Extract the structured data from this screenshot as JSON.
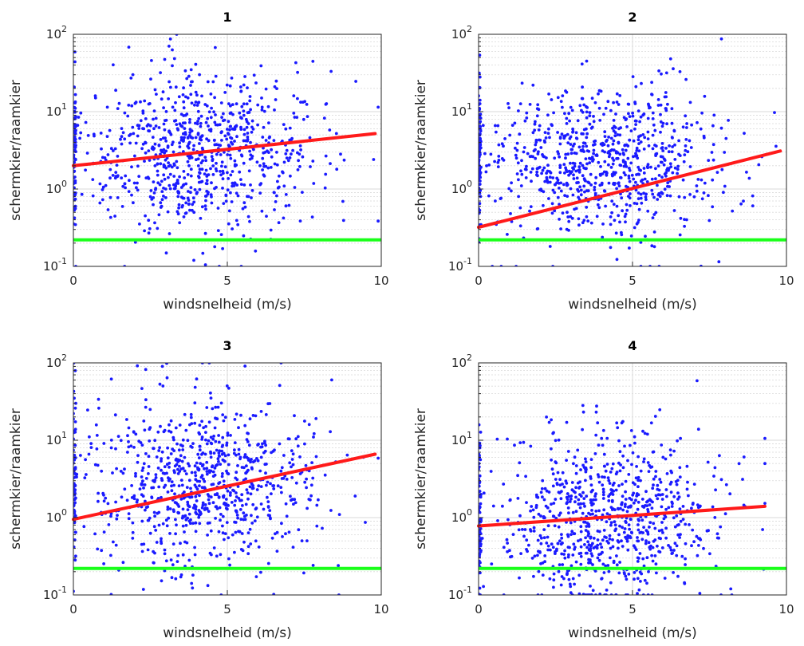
{
  "colors": {
    "points": "#1a1aff",
    "fit_line": "#ff1a1a",
    "threshold_line": "#1aff1a",
    "grid": "#d9d9d9",
    "axes": "#262626"
  },
  "chart_data": [
    {
      "type": "scatter",
      "title": "1",
      "xlabel": "windsnelheid (m/s)",
      "ylabel": "schermkier/raamkier",
      "xlim": [
        0,
        10
      ],
      "ylim": [
        0.1,
        100
      ],
      "yscale": "log",
      "xticks": [
        "0",
        "5",
        "10"
      ],
      "yticks": [
        {
          "base": "10",
          "exp": "-1"
        },
        {
          "base": "10",
          "exp": "0"
        },
        {
          "base": "10",
          "exp": "1"
        },
        {
          "base": "10",
          "exp": "2"
        }
      ],
      "grid": true,
      "fit_line": {
        "x": [
          0,
          9.8
        ],
        "y": [
          2.0,
          5.2
        ]
      },
      "threshold": 0.22,
      "point_spread": {
        "x_max": 9.9,
        "center_log10": 0.45,
        "sigma_log10": 0.5
      }
    },
    {
      "type": "scatter",
      "title": "2",
      "xlabel": "windsnelheid (m/s)",
      "ylabel": "schermkier/raamkier",
      "xlim": [
        0,
        10
      ],
      "ylim": [
        0.1,
        100
      ],
      "yscale": "log",
      "xticks": [
        "0",
        "5",
        "10"
      ],
      "yticks": [
        {
          "base": "10",
          "exp": "-1"
        },
        {
          "base": "10",
          "exp": "0"
        },
        {
          "base": "10",
          "exp": "1"
        },
        {
          "base": "10",
          "exp": "2"
        }
      ],
      "grid": true,
      "fit_line": {
        "x": [
          0,
          9.8
        ],
        "y": [
          0.32,
          3.1
        ]
      },
      "threshold": 0.22,
      "point_spread": {
        "x_max": 9.8,
        "center_log10": 0.3,
        "sigma_log10": 0.5
      }
    },
    {
      "type": "scatter",
      "title": "3",
      "xlabel": "windsnelheid (m/s)",
      "ylabel": "schermkier/raamkier",
      "xlim": [
        0,
        10
      ],
      "ylim": [
        0.1,
        100
      ],
      "yscale": "log",
      "xticks": [
        "0",
        "5",
        "10"
      ],
      "yticks": [
        {
          "base": "10",
          "exp": "-1"
        },
        {
          "base": "10",
          "exp": "0"
        },
        {
          "base": "10",
          "exp": "1"
        },
        {
          "base": "10",
          "exp": "2"
        }
      ],
      "grid": true,
      "fit_line": {
        "x": [
          0,
          9.8
        ],
        "y": [
          0.95,
          6.6
        ]
      },
      "threshold": 0.22,
      "point_spread": {
        "x_max": 9.9,
        "center_log10": 0.45,
        "sigma_log10": 0.55
      }
    },
    {
      "type": "scatter",
      "title": "4",
      "xlabel": "windsnelheid (m/s)",
      "ylabel": "schermkier/raamkier",
      "xlim": [
        0,
        10
      ],
      "ylim": [
        0.1,
        100
      ],
      "yscale": "log",
      "xticks": [
        "0",
        "5",
        "10"
      ],
      "yticks": [
        {
          "base": "10",
          "exp": "-1"
        },
        {
          "base": "10",
          "exp": "0"
        },
        {
          "base": "10",
          "exp": "1"
        },
        {
          "base": "10",
          "exp": "2"
        }
      ],
      "grid": true,
      "fit_line": {
        "x": [
          0,
          9.3
        ],
        "y": [
          0.78,
          1.4
        ]
      },
      "threshold": 0.22,
      "point_spread": {
        "x_max": 9.3,
        "center_log10": 0.0,
        "sigma_log10": 0.55
      }
    }
  ]
}
